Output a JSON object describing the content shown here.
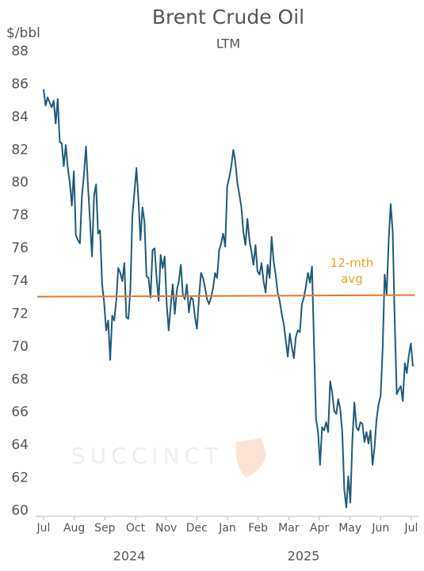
{
  "chart_data": {
    "type": "line",
    "title": "Brent Crude Oil",
    "subtitle": "LTM",
    "y_label": "$/bbl",
    "watermark": "SUCCINCT",
    "annotation": "12-mth avg",
    "xticks": [
      "Jul",
      "Aug",
      "Sep",
      "Oct",
      "Nov",
      "Dec",
      "Jan",
      "Feb",
      "Mar",
      "Apr",
      "May",
      "Jun",
      "Jul"
    ],
    "year_labels": [
      "2024",
      "2025"
    ],
    "ylim": [
      60,
      88
    ],
    "yticks": [
      60,
      62,
      64,
      66,
      68,
      70,
      72,
      74,
      76,
      78,
      80,
      82,
      84,
      86,
      88
    ],
    "grid": false,
    "series": [
      {
        "name": "Brent",
        "color": "#1f5a7a",
        "values": [
          85.7,
          84.7,
          85.2,
          84.9,
          84.6,
          85.0,
          83.6,
          85.1,
          82.5,
          82.4,
          81.0,
          82.3,
          80.9,
          80.0,
          78.6,
          80.7,
          76.8,
          76.5,
          76.3,
          79.2,
          80.5,
          82.2,
          79.8,
          77.7,
          75.5,
          79.2,
          79.9,
          76.9,
          77.1,
          73.8,
          72.7,
          71.0,
          71.6,
          69.2,
          71.9,
          71.6,
          72.8,
          74.8,
          74.5,
          74.0,
          75.1,
          71.8,
          71.7,
          73.5,
          78.0,
          79.4,
          80.9,
          79.0,
          76.5,
          78.5,
          77.6,
          74.3,
          74.2,
          73.0,
          75.9,
          76.0,
          74.2,
          72.8,
          75.6,
          74.8,
          75.5,
          72.6,
          71.0,
          72.5,
          73.8,
          72.0,
          73.4,
          74.0,
          75.0,
          73.2,
          72.9,
          73.8,
          72.1,
          73.0,
          72.9,
          71.8,
          71.1,
          73.0,
          74.5,
          74.2,
          73.6,
          72.9,
          72.6,
          73.0,
          73.6,
          74.5,
          74.2,
          75.9,
          76.3,
          76.9,
          76.1,
          79.8,
          80.3,
          81.0,
          82.0,
          81.3,
          80.0,
          79.3,
          78.5,
          77.0,
          76.2,
          77.8,
          76.5,
          75.8,
          75.0,
          76.2,
          74.6,
          74.4,
          75.1,
          74.0,
          73.3,
          75.0,
          74.2,
          76.7,
          75.2,
          74.4,
          73.3,
          72.8,
          72.0,
          71.4,
          70.4,
          69.4,
          70.8,
          70.0,
          69.3,
          70.6,
          71.0,
          70.9,
          72.6,
          73.0,
          73.7,
          74.5,
          73.9,
          74.9,
          70.1,
          65.6,
          64.8,
          62.8,
          65.1,
          64.9,
          65.4,
          64.8,
          67.9,
          67.2,
          66.1,
          65.9,
          66.8,
          66.2,
          64.8,
          61.3,
          60.2,
          62.1,
          60.5,
          64.3,
          66.6,
          65.1,
          64.9,
          65.4,
          65.3,
          64.2,
          64.8,
          64.1,
          64.9,
          62.8,
          63.9,
          65.6,
          66.5,
          67.0,
          69.8,
          74.4,
          73.2,
          76.5,
          78.7,
          77.0,
          71.5,
          67.1,
          67.4,
          67.6,
          66.7,
          69.0,
          68.4,
          69.5,
          70.2,
          68.8
        ]
      },
      {
        "name": "12-mth avg",
        "color": "#e8772e",
        "values": [
          73.05,
          73.15
        ]
      }
    ]
  }
}
